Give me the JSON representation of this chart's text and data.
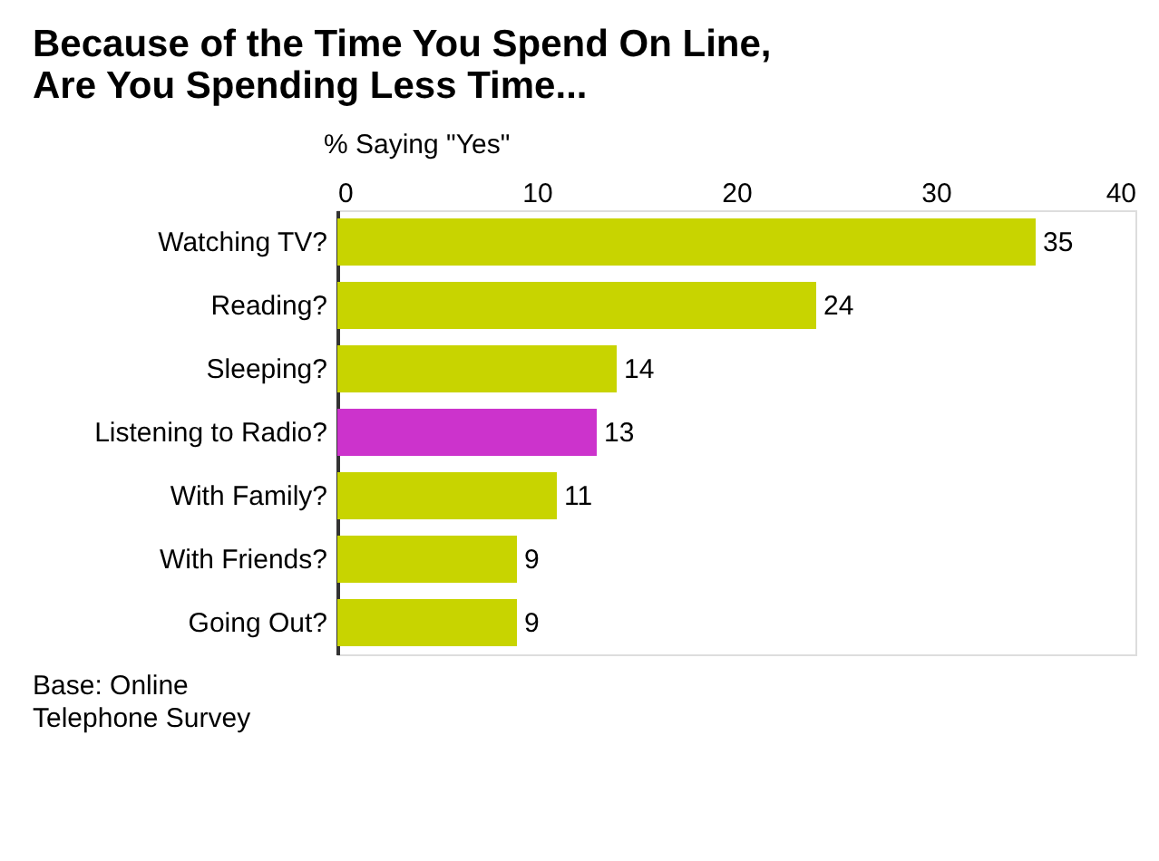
{
  "chart_data": {
    "type": "bar",
    "orientation": "horizontal",
    "title": "Because of the Time You Spend On Line,\nAre You Spending Less Time...",
    "xlabel": "% Saying \"Yes\"",
    "categories": [
      "Watching TV?",
      "Reading?",
      "Sleeping?",
      "Listening to Radio?",
      "With Family?",
      "With Friends?",
      "Going Out?"
    ],
    "values": [
      35,
      24,
      14,
      13,
      11,
      9,
      9
    ],
    "colors": [
      "#c8d400",
      "#c8d400",
      "#c8d400",
      "#cc33cc",
      "#c8d400",
      "#c8d400",
      "#c8d400"
    ],
    "xlim": [
      0,
      40
    ],
    "xticks": [
      0,
      10,
      20,
      30,
      40
    ],
    "data_labels": true,
    "grid": false,
    "annotations": [
      "Base: Online\nTelephone Survey"
    ]
  }
}
